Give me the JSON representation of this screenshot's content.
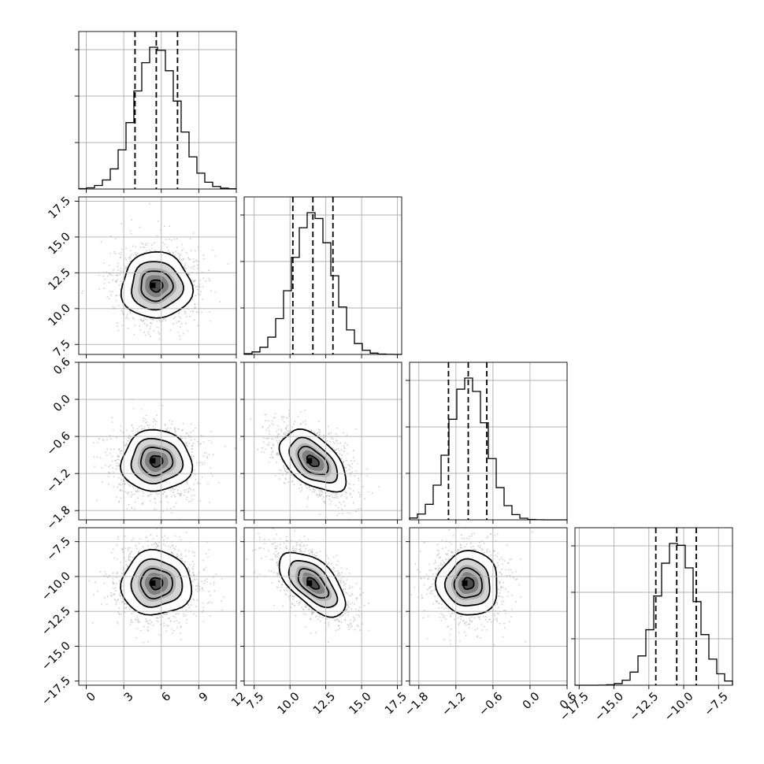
{
  "chart_data": {
    "type": "corner",
    "parameters": [
      {
        "ticks": [
          "0",
          "3",
          "6",
          "9",
          "12"
        ],
        "tick_values": [
          0,
          3,
          6,
          9,
          12
        ],
        "range": [
          -0.6,
          12.0
        ],
        "quantiles": [
          3.9,
          5.6,
          7.3
        ],
        "mean": 5.6,
        "sigma": 1.7
      },
      {
        "ticks": [
          "7.5",
          "10.0",
          "12.5",
          "15.0",
          "17.5"
        ],
        "tick_values": [
          7.5,
          10.0,
          12.5,
          15.0,
          17.5
        ],
        "range": [
          6.8,
          17.8
        ],
        "quantiles": [
          10.2,
          11.6,
          13.0
        ],
        "mean": 11.6,
        "sigma": 1.4
      },
      {
        "ticks": [
          "-1.8",
          "-1.2",
          "-0.6",
          "0.0",
          "0.6"
        ],
        "tick_values": [
          -1.8,
          -1.2,
          -0.6,
          0.0,
          0.6
        ],
        "range": [
          -1.95,
          0.6
        ],
        "quantiles": [
          -1.32,
          -1.0,
          -0.7
        ],
        "mean": -1.0,
        "sigma": 0.3
      },
      {
        "ticks": [
          "-17.5",
          "-15.0",
          "-12.5",
          "-10.0",
          "-7.5"
        ],
        "tick_values": [
          -17.5,
          -15.0,
          -12.5,
          -10.0,
          -7.5
        ],
        "range": [
          -17.8,
          -6.5
        ],
        "quantiles": [
          -12.0,
          -10.5,
          -9.1
        ],
        "mean": -10.5,
        "sigma": 1.4
      }
    ],
    "correlations": [
      {
        "i": 1,
        "j": 0,
        "rho": 0.0
      },
      {
        "i": 2,
        "j": 0,
        "rho": 0.0
      },
      {
        "i": 2,
        "j": 1,
        "rho": -0.5
      },
      {
        "i": 3,
        "j": 0,
        "rho": 0.0
      },
      {
        "i": 3,
        "j": 1,
        "rho": -0.6
      },
      {
        "i": 3,
        "j": 2,
        "rho": 0.0
      }
    ],
    "histogram_bins": 20,
    "contour_levels_sigma": [
      0.5,
      1.0,
      1.5,
      2.0
    ],
    "grid": true,
    "colors": {
      "line": "#000000",
      "points": "#999999",
      "grid": "#b0b0b0"
    }
  }
}
